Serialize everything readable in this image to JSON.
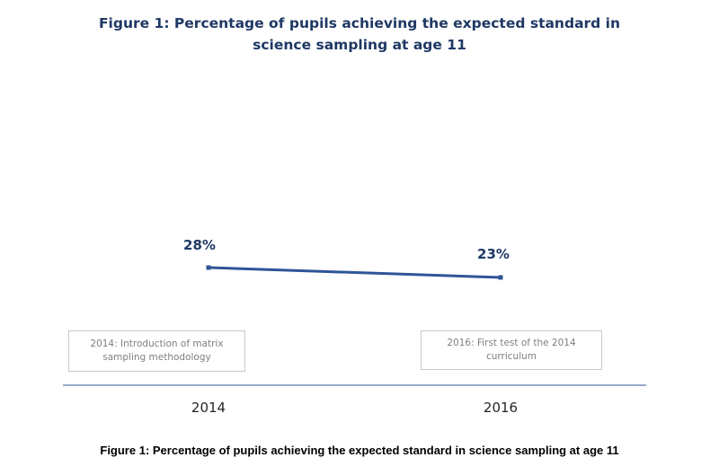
{
  "chart_data": {
    "type": "line",
    "title": "Figure 1: Percentage of pupils achieving the expected standard in science sampling at age 11",
    "categories": [
      "2014",
      "2016"
    ],
    "series": [
      {
        "values": [
          28,
          23
        ],
        "data_labels": [
          "28%",
          "23%"
        ],
        "color": "#2f5597"
      }
    ],
    "annotations": [
      "2014: Introduction of matrix sampling methodology",
      "2016: First test of the 2014 curriculum"
    ],
    "grid": false,
    "legend": "none"
  },
  "caption": "Figure 1: Percentage of pupils achieving the expected standard in science sampling at age 11",
  "colors": {
    "title": "#1f3864",
    "line": "#2f5597",
    "axis": "#2f5597",
    "box_border": "#c8c8c8",
    "box_text": "#7f7f7f"
  }
}
